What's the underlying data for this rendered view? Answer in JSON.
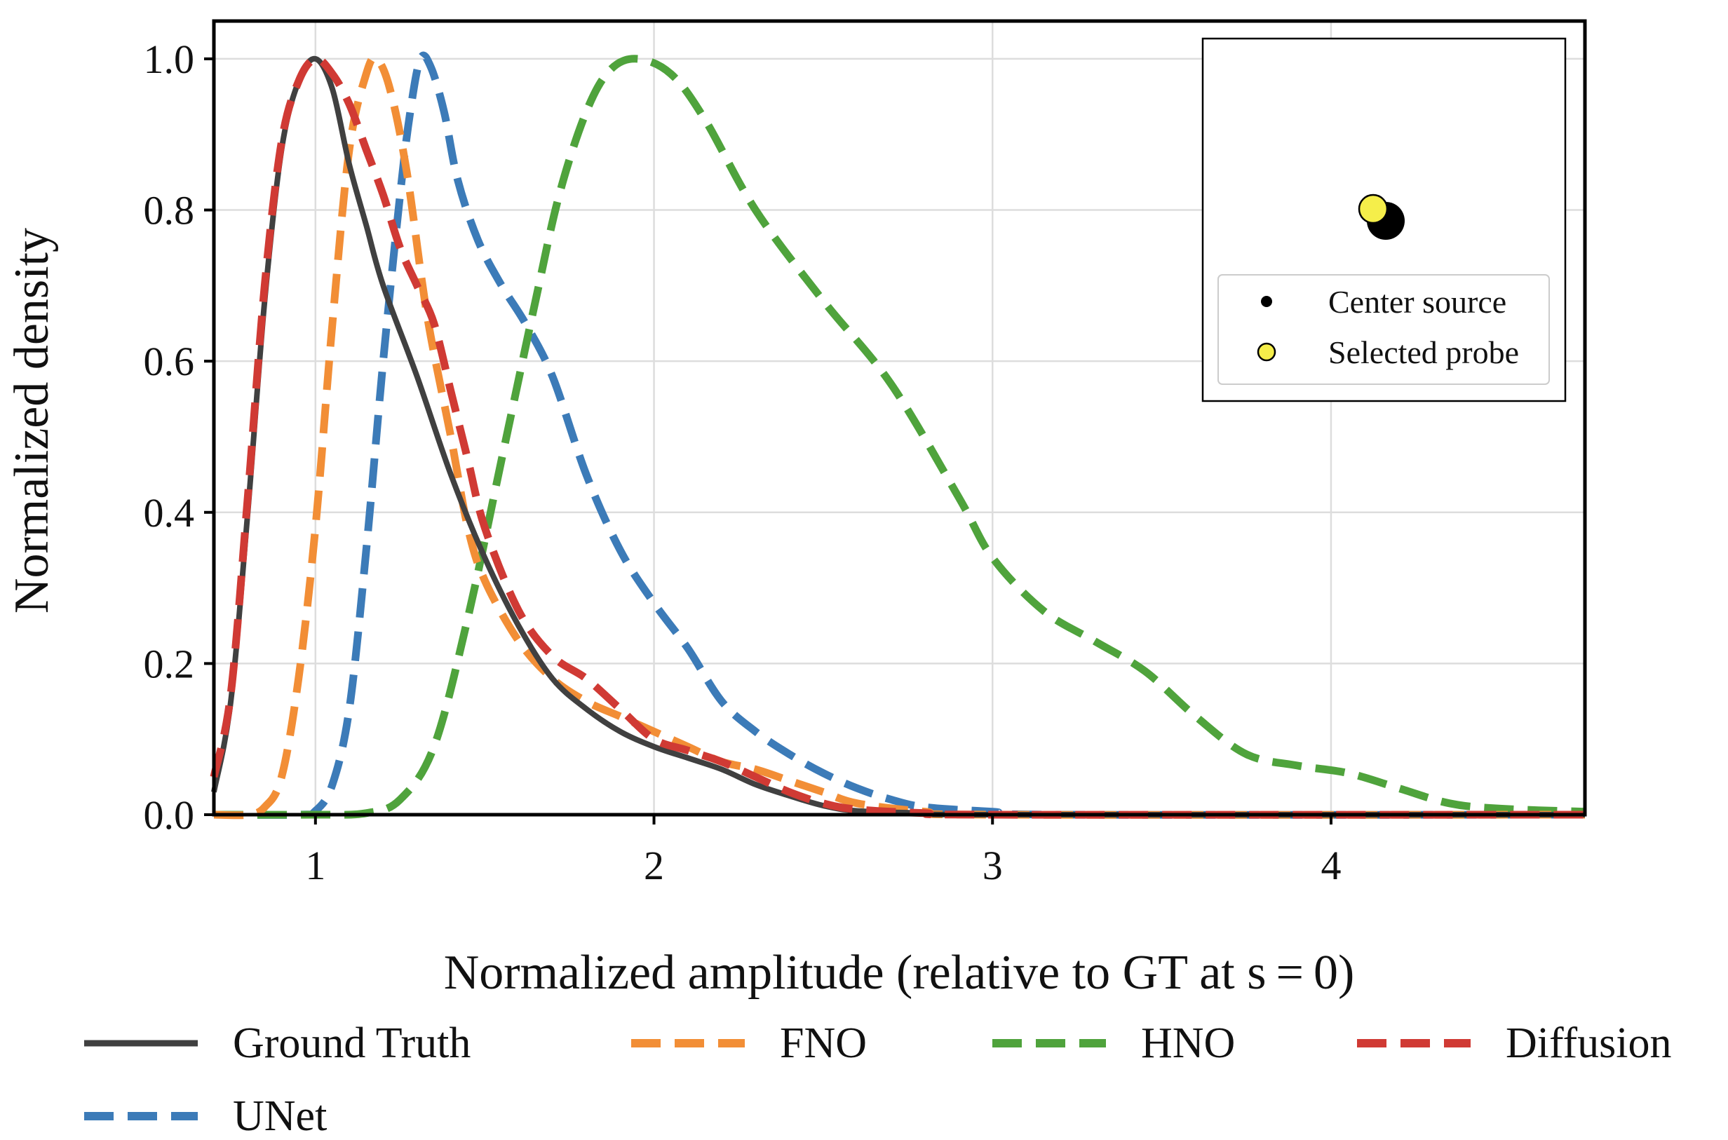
{
  "chart_data": {
    "type": "line",
    "xlabel": "Normalized amplitude (relative to GT at s = 0)",
    "ylabel": "Normalized density",
    "xlim": [
      0.7,
      4.75
    ],
    "ylim": [
      0.0,
      1.05
    ],
    "x_ticks": [
      1,
      2,
      3,
      4
    ],
    "y_ticks": [
      0.0,
      0.2,
      0.4,
      0.6,
      0.8,
      1.0
    ],
    "x_tick_labels": [
      "1",
      "2",
      "3",
      "4"
    ],
    "y_tick_labels": [
      "0.0",
      "0.2",
      "0.4",
      "0.6",
      "0.8",
      "1.0"
    ],
    "grid": true,
    "legend_placement": "bottom",
    "series": [
      {
        "name": "Ground Truth",
        "color": "#404040",
        "style": "solid",
        "points": [
          [
            0.7,
            0.03
          ],
          [
            0.75,
            0.15
          ],
          [
            0.8,
            0.4
          ],
          [
            0.85,
            0.68
          ],
          [
            0.9,
            0.88
          ],
          [
            0.95,
            0.97
          ],
          [
            1.0,
            1.0
          ],
          [
            1.05,
            0.96
          ],
          [
            1.1,
            0.86
          ],
          [
            1.15,
            0.78
          ],
          [
            1.2,
            0.7
          ],
          [
            1.3,
            0.58
          ],
          [
            1.4,
            0.45
          ],
          [
            1.5,
            0.34
          ],
          [
            1.6,
            0.25
          ],
          [
            1.7,
            0.18
          ],
          [
            1.8,
            0.14
          ],
          [
            1.9,
            0.11
          ],
          [
            2.0,
            0.09
          ],
          [
            2.1,
            0.075
          ],
          [
            2.2,
            0.06
          ],
          [
            2.3,
            0.04
          ],
          [
            2.4,
            0.025
          ],
          [
            2.5,
            0.012
          ],
          [
            2.6,
            0.005
          ],
          [
            2.8,
            0.002
          ],
          [
            3.0,
            0.0
          ],
          [
            4.75,
            0.0
          ]
        ]
      },
      {
        "name": "FNO",
        "color": "#F28E36",
        "style": "dashed",
        "points": [
          [
            0.7,
            0.0
          ],
          [
            0.8,
            0.0
          ],
          [
            0.85,
            0.01
          ],
          [
            0.9,
            0.05
          ],
          [
            0.95,
            0.18
          ],
          [
            1.0,
            0.38
          ],
          [
            1.05,
            0.65
          ],
          [
            1.1,
            0.88
          ],
          [
            1.15,
            0.98
          ],
          [
            1.18,
            1.0
          ],
          [
            1.22,
            0.96
          ],
          [
            1.27,
            0.85
          ],
          [
            1.33,
            0.66
          ],
          [
            1.4,
            0.5
          ],
          [
            1.45,
            0.38
          ],
          [
            1.5,
            0.31
          ],
          [
            1.6,
            0.23
          ],
          [
            1.7,
            0.18
          ],
          [
            1.8,
            0.15
          ],
          [
            1.9,
            0.13
          ],
          [
            2.0,
            0.11
          ],
          [
            2.1,
            0.09
          ],
          [
            2.2,
            0.07
          ],
          [
            2.3,
            0.06
          ],
          [
            2.4,
            0.045
          ],
          [
            2.5,
            0.03
          ],
          [
            2.6,
            0.015
          ],
          [
            2.8,
            0.004
          ],
          [
            3.0,
            0.0
          ],
          [
            4.75,
            0.0
          ]
        ]
      },
      {
        "name": "HNO",
        "color": "#4FA33C",
        "style": "dashed",
        "points": [
          [
            0.7,
            0.0
          ],
          [
            1.0,
            0.0
          ],
          [
            1.15,
            0.002
          ],
          [
            1.25,
            0.02
          ],
          [
            1.35,
            0.09
          ],
          [
            1.45,
            0.26
          ],
          [
            1.55,
            0.47
          ],
          [
            1.65,
            0.68
          ],
          [
            1.72,
            0.82
          ],
          [
            1.8,
            0.93
          ],
          [
            1.87,
            0.985
          ],
          [
            1.95,
            1.0
          ],
          [
            2.05,
            0.98
          ],
          [
            2.15,
            0.92
          ],
          [
            2.3,
            0.8
          ],
          [
            2.5,
            0.68
          ],
          [
            2.7,
            0.57
          ],
          [
            2.9,
            0.42
          ],
          [
            3.0,
            0.34
          ],
          [
            3.15,
            0.27
          ],
          [
            3.3,
            0.23
          ],
          [
            3.45,
            0.19
          ],
          [
            3.6,
            0.13
          ],
          [
            3.75,
            0.08
          ],
          [
            3.9,
            0.065
          ],
          [
            4.05,
            0.055
          ],
          [
            4.2,
            0.035
          ],
          [
            4.35,
            0.015
          ],
          [
            4.5,
            0.008
          ],
          [
            4.75,
            0.004
          ]
        ]
      },
      {
        "name": "Diffusion",
        "color": "#D03A34",
        "style": "dashed",
        "points": [
          [
            0.7,
            0.05
          ],
          [
            0.75,
            0.16
          ],
          [
            0.8,
            0.42
          ],
          [
            0.85,
            0.7
          ],
          [
            0.9,
            0.89
          ],
          [
            0.95,
            0.97
          ],
          [
            1.0,
            1.0
          ],
          [
            1.05,
            0.98
          ],
          [
            1.1,
            0.94
          ],
          [
            1.15,
            0.88
          ],
          [
            1.2,
            0.82
          ],
          [
            1.25,
            0.75
          ],
          [
            1.3,
            0.7
          ],
          [
            1.35,
            0.65
          ],
          [
            1.4,
            0.56
          ],
          [
            1.45,
            0.47
          ],
          [
            1.5,
            0.38
          ],
          [
            1.6,
            0.27
          ],
          [
            1.7,
            0.21
          ],
          [
            1.8,
            0.18
          ],
          [
            1.9,
            0.14
          ],
          [
            2.0,
            0.1
          ],
          [
            2.1,
            0.085
          ],
          [
            2.2,
            0.07
          ],
          [
            2.3,
            0.05
          ],
          [
            2.4,
            0.03
          ],
          [
            2.5,
            0.015
          ],
          [
            2.6,
            0.007
          ],
          [
            2.8,
            0.002
          ],
          [
            3.0,
            0.0
          ],
          [
            4.75,
            0.0
          ]
        ]
      },
      {
        "name": "UNet",
        "color": "#3C7BB8",
        "style": "dashed",
        "points": [
          [
            0.7,
            0.0
          ],
          [
            0.95,
            0.0
          ],
          [
            1.0,
            0.005
          ],
          [
            1.05,
            0.04
          ],
          [
            1.1,
            0.14
          ],
          [
            1.15,
            0.35
          ],
          [
            1.2,
            0.6
          ],
          [
            1.25,
            0.82
          ],
          [
            1.28,
            0.93
          ],
          [
            1.31,
            1.0
          ],
          [
            1.34,
            0.99
          ],
          [
            1.38,
            0.93
          ],
          [
            1.42,
            0.84
          ],
          [
            1.48,
            0.76
          ],
          [
            1.55,
            0.7
          ],
          [
            1.62,
            0.65
          ],
          [
            1.7,
            0.58
          ],
          [
            1.8,
            0.45
          ],
          [
            1.9,
            0.35
          ],
          [
            2.0,
            0.28
          ],
          [
            2.1,
            0.22
          ],
          [
            2.2,
            0.15
          ],
          [
            2.3,
            0.11
          ],
          [
            2.4,
            0.08
          ],
          [
            2.5,
            0.055
          ],
          [
            2.6,
            0.035
          ],
          [
            2.7,
            0.02
          ],
          [
            2.8,
            0.01
          ],
          [
            3.0,
            0.004
          ],
          [
            3.2,
            0.0
          ],
          [
            4.75,
            0.0
          ]
        ]
      }
    ],
    "legend": [
      "Ground Truth",
      "FNO",
      "HNO",
      "Diffusion",
      "UNet"
    ],
    "inset": {
      "legend": [
        {
          "label": "Center source",
          "marker_color": "#000000"
        },
        {
          "label": "Selected probe",
          "marker_color": "#F5EE4A"
        }
      ]
    }
  }
}
